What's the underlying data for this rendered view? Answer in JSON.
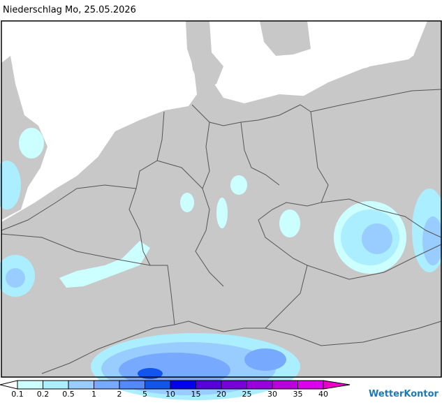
{
  "title": "Niederschlag Mo, 25.05.2026",
  "legend": {
    "labels": [
      0.1,
      0.2,
      0.5,
      1,
      2,
      5,
      10,
      15,
      20,
      25,
      30,
      35,
      40
    ],
    "colors": [
      "#ffffff",
      "#ccffff",
      "#aaeeff",
      "#99ccff",
      "#77aaff",
      "#5588ff",
      "#1155ee",
      "#0000ee",
      "#5500dd",
      "#7700dd",
      "#9900dd",
      "#bb00dd",
      "#dd00ee",
      "#ee00cc"
    ]
  },
  "brand": "WetterKontor"
}
